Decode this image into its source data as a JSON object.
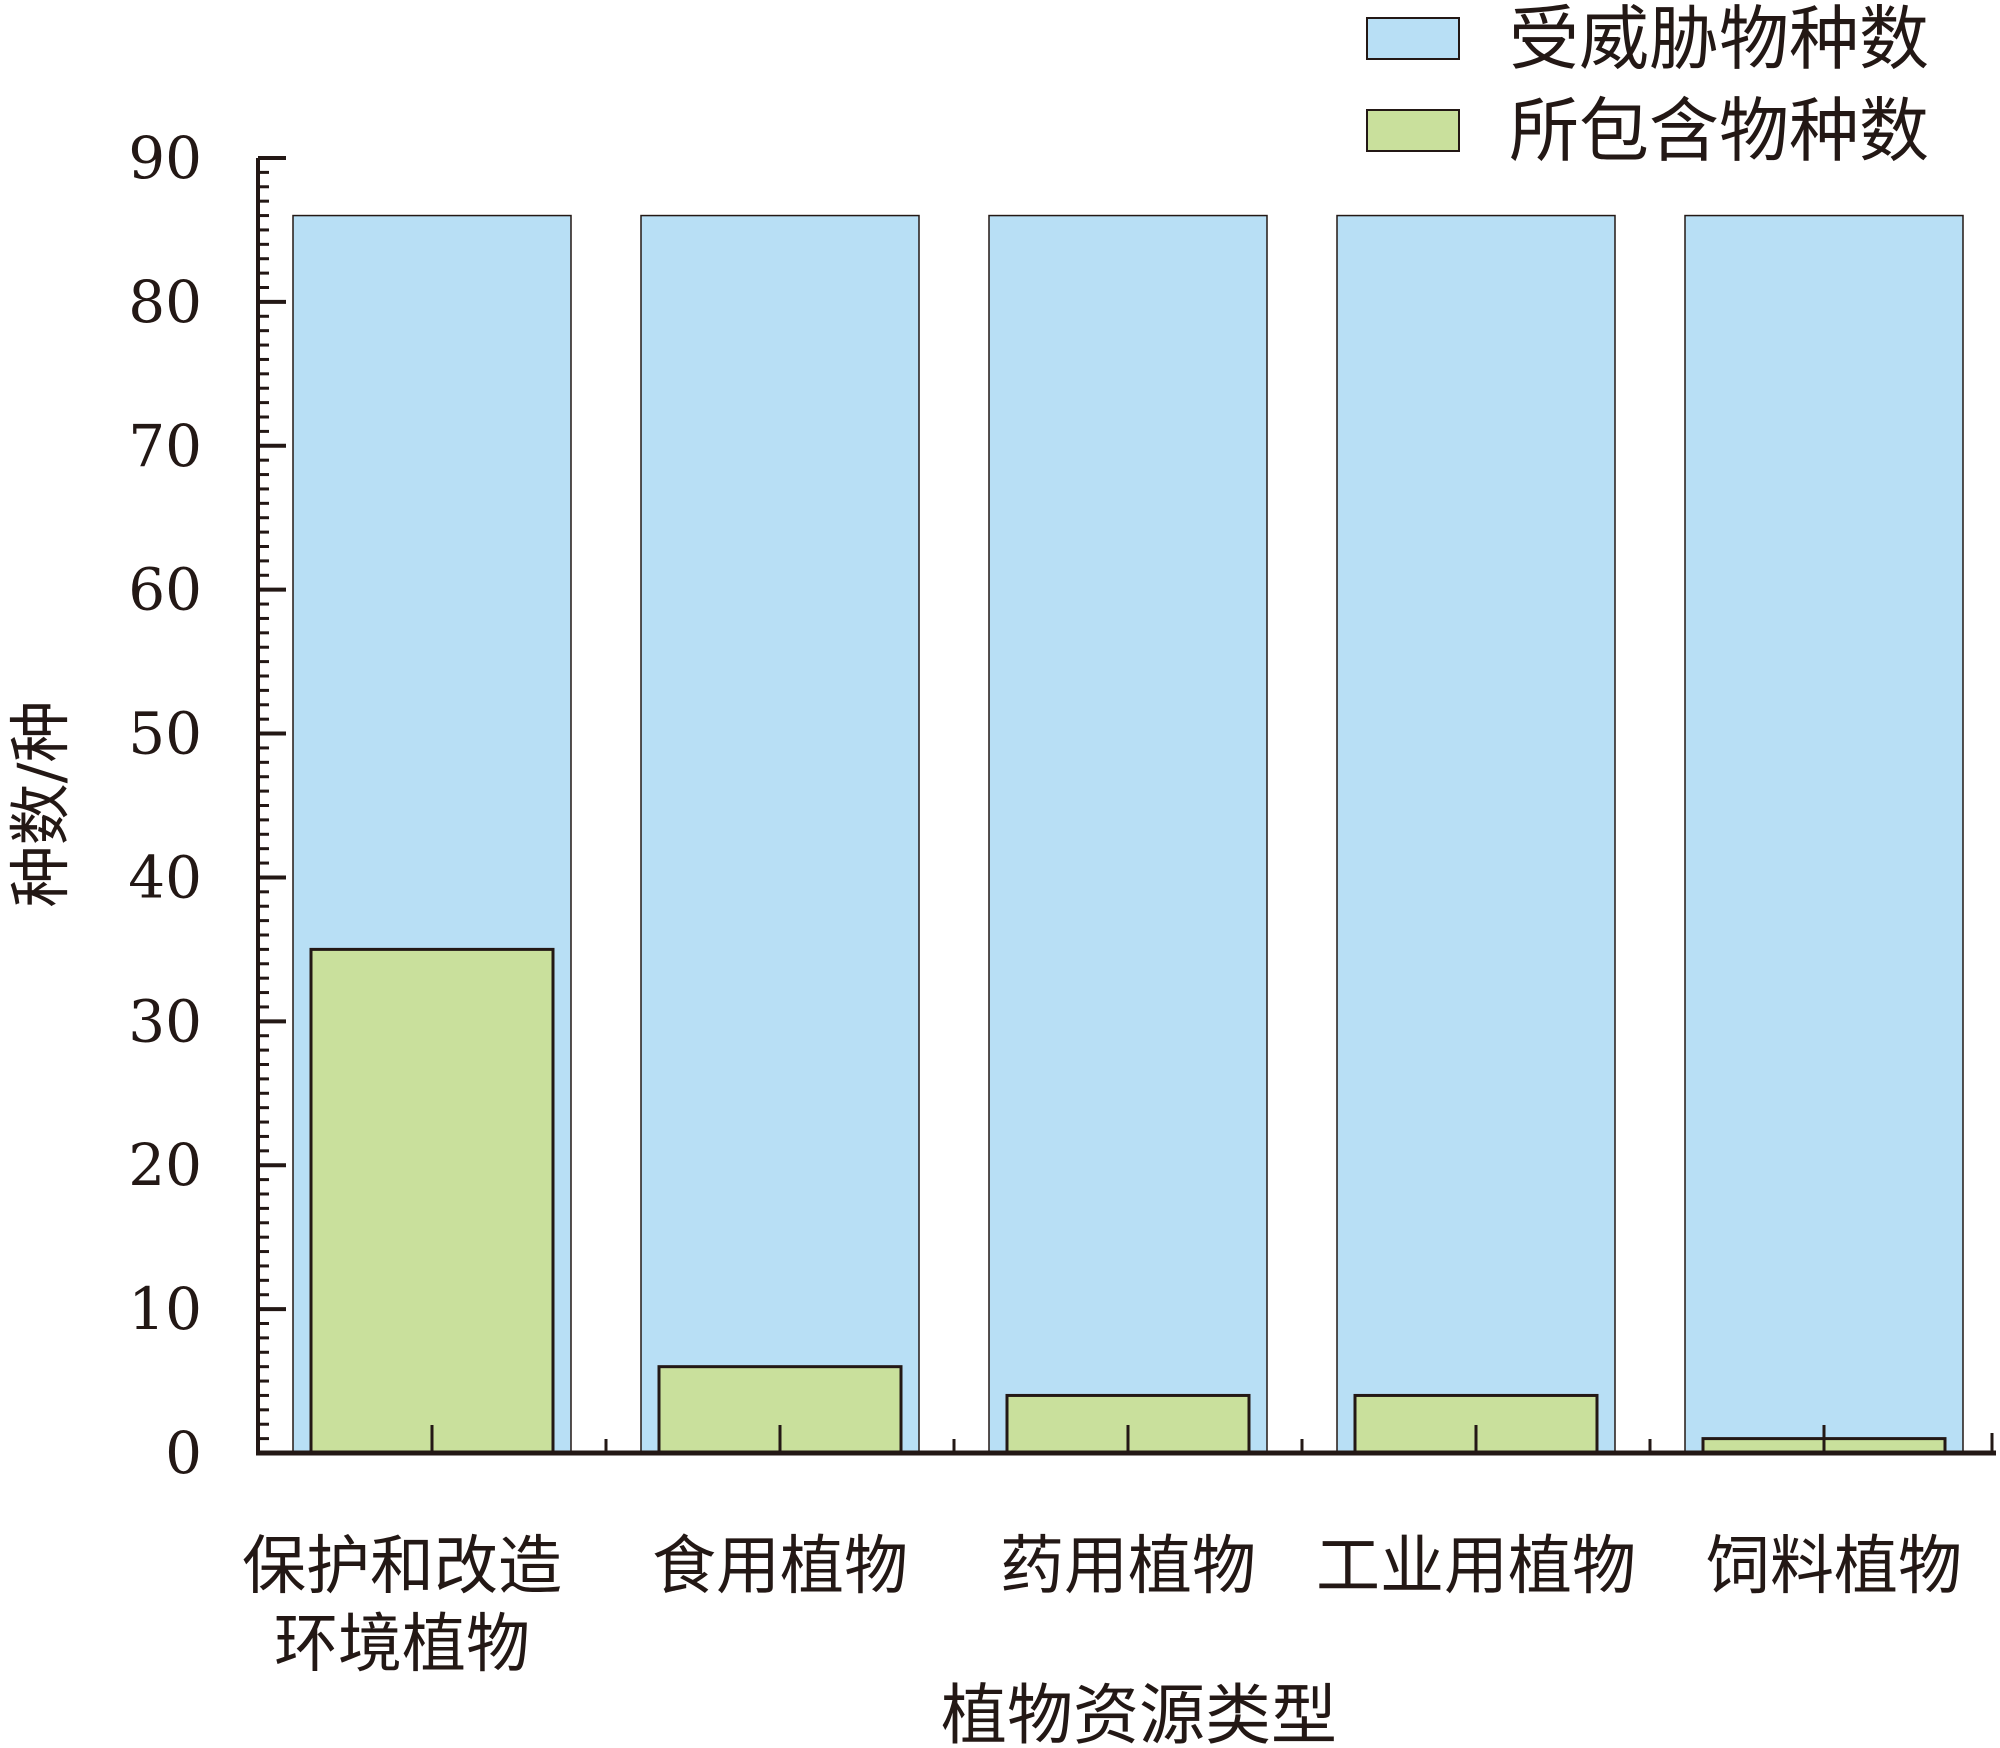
{
  "chart_data": {
    "type": "bar",
    "xlabel": "植物资源类型",
    "ylabel": "种数/种",
    "ylim": [
      0,
      90
    ],
    "yticks": [
      0,
      10,
      20,
      30,
      40,
      50,
      60,
      70,
      80,
      90
    ],
    "categories": [
      [
        "保护和改造",
        "环境植物"
      ],
      [
        "食用植物"
      ],
      [
        "药用植物"
      ],
      [
        "工业用植物"
      ],
      [
        "饲料植物"
      ]
    ],
    "series": [
      {
        "name": "受威胁物种数",
        "color": "#b8dff5",
        "values": [
          86,
          86,
          86,
          86,
          86
        ]
      },
      {
        "name": "所包含物种数",
        "color": "#c9e09c",
        "values": [
          35,
          6,
          4,
          4,
          1
        ]
      }
    ],
    "legend_position": "top-right",
    "grid": false
  }
}
